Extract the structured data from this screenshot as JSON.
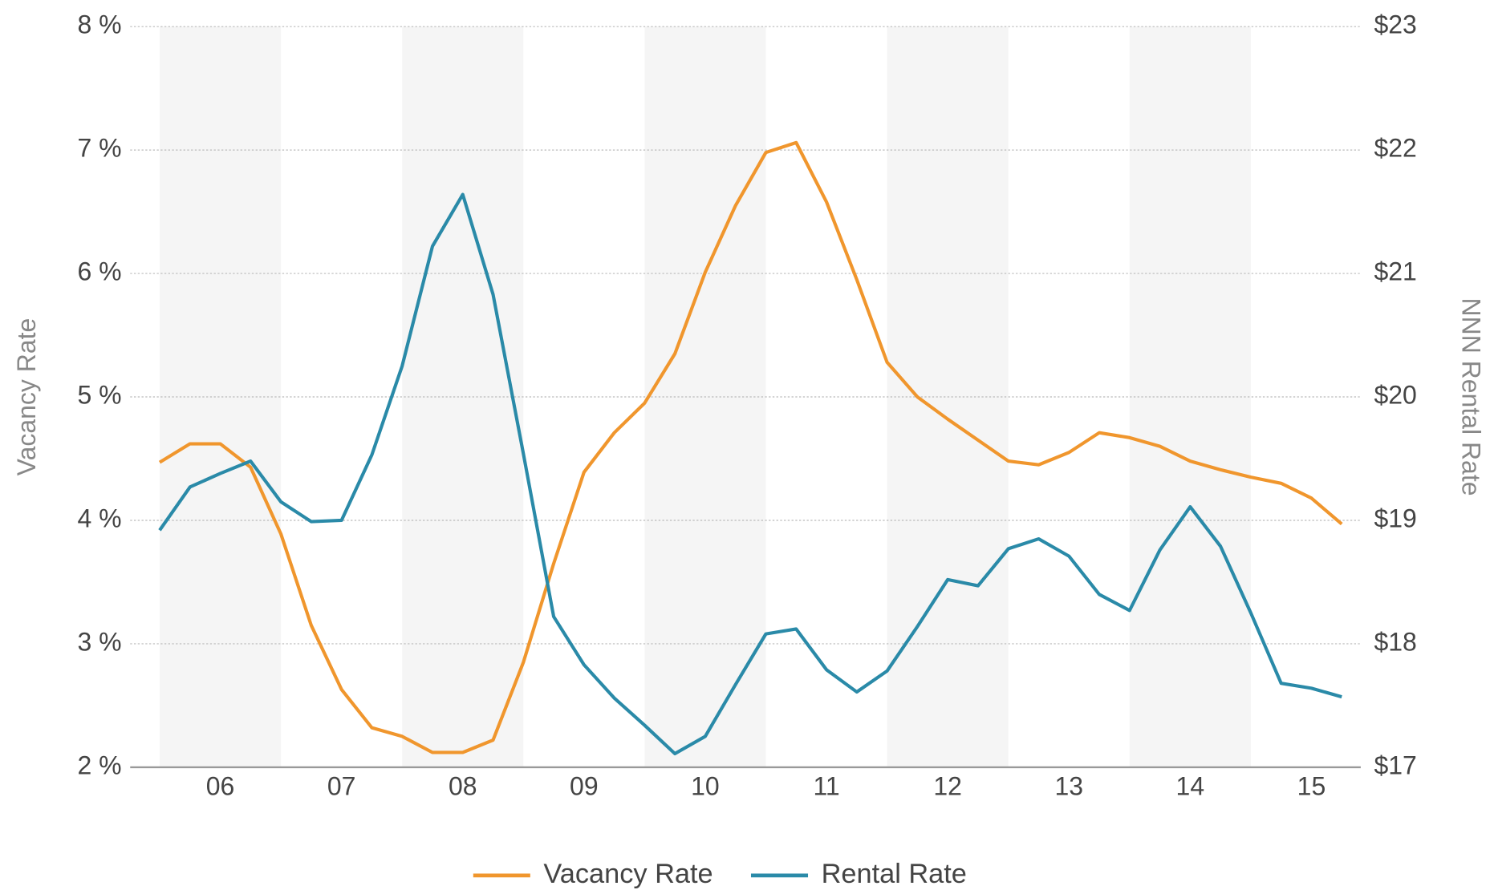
{
  "chart_data": {
    "type": "line",
    "categories": [
      null,
      null,
      "06",
      null,
      null,
      null,
      "07",
      null,
      null,
      null,
      "08",
      null,
      null,
      null,
      "09",
      null,
      null,
      null,
      "10",
      null,
      null,
      null,
      "11",
      null,
      null,
      null,
      "12",
      null,
      null,
      null,
      "13",
      null,
      null,
      null,
      "14",
      null,
      null,
      null,
      "15",
      null
    ],
    "y_label": "Vacancy Rate",
    "y2_label": "NNN Rental Rate",
    "ylim": [
      2,
      8
    ],
    "yticks": [
      {
        "value": 2,
        "label": "2 %"
      },
      {
        "value": 3,
        "label": "3 %"
      },
      {
        "value": 4,
        "label": "4 %"
      },
      {
        "value": 5,
        "label": "5 %"
      },
      {
        "value": 6,
        "label": "6 %"
      },
      {
        "value": 7,
        "label": "7 %"
      },
      {
        "value": 8,
        "label": "8 %"
      }
    ],
    "y2lim": [
      17,
      23
    ],
    "y2ticks": [
      {
        "value": 17,
        "label": "$17"
      },
      {
        "value": 18,
        "label": "$18"
      },
      {
        "value": 19,
        "label": "$19"
      },
      {
        "value": 20,
        "label": "$20"
      },
      {
        "value": 21,
        "label": "$21"
      },
      {
        "value": 22,
        "label": "$22"
      },
      {
        "value": 23,
        "label": "$23"
      }
    ],
    "grid": true,
    "legend": "bottom",
    "series": [
      {
        "name": "Vacancy Rate",
        "color": "#f0962d",
        "values": [
          4.47,
          4.62,
          4.62,
          4.43,
          3.89,
          3.15,
          2.63,
          2.32,
          2.25,
          2.12,
          2.12,
          2.22,
          2.85,
          3.65,
          4.39,
          4.71,
          4.95,
          5.35,
          6.01,
          6.55,
          6.98,
          7.06,
          6.58,
          5.95,
          5.28,
          5.0,
          4.82,
          4.65,
          4.48,
          4.45,
          4.55,
          4.71,
          4.67,
          4.6,
          4.48,
          4.41,
          4.35,
          4.3,
          4.18,
          3.97
        ]
      },
      {
        "name": "Rental Rate",
        "color": "#2a8aa8",
        "axis": "y2",
        "values": [
          18.92,
          19.27,
          19.38,
          19.48,
          19.15,
          18.99,
          19.0,
          19.53,
          20.25,
          21.22,
          21.64,
          20.83,
          19.54,
          18.22,
          17.83,
          17.56,
          17.34,
          17.11,
          17.25,
          17.67,
          18.08,
          18.12,
          17.79,
          17.61,
          17.78,
          18.14,
          18.52,
          18.47,
          18.77,
          18.85,
          18.71,
          18.4,
          18.27,
          18.76,
          19.11,
          18.79,
          18.25,
          17.68,
          17.64,
          17.57
        ]
      }
    ]
  }
}
